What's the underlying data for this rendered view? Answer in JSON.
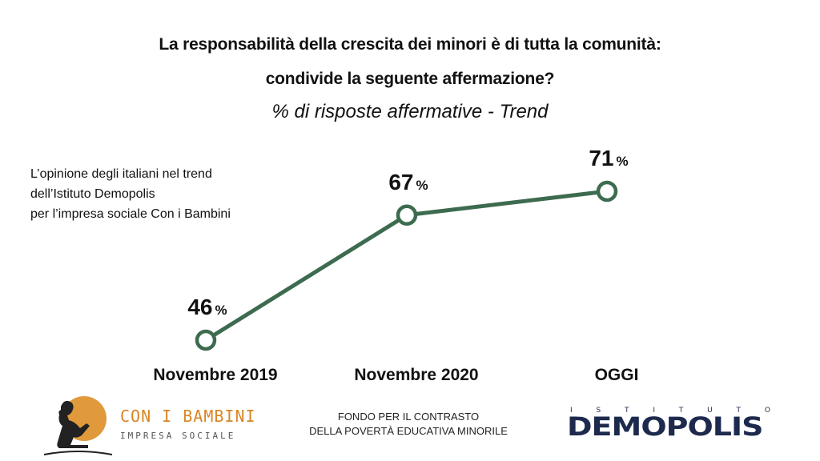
{
  "header": {
    "title_line1": "La responsabilità della crescita dei minori è di tutta la comunità:",
    "title_line2": "condivide la seguente affermazione?",
    "subtitle": "% di risposte affermative - Trend"
  },
  "note": {
    "lines": [
      "L’opinione degli italiani nel trend",
      "dell’Istituto Demopolis",
      "per l’impresa sociale Con i Bambini"
    ]
  },
  "chart_data": {
    "type": "line",
    "categories": [
      "Novembre 2019",
      "Novembre 2020",
      "OGGI"
    ],
    "series": [
      {
        "values": [
          46,
          67,
          71
        ]
      }
    ],
    "value_labels": [
      "46",
      "67",
      "71"
    ],
    "unit_label": "%",
    "line_color": "#3d6b4f",
    "grid": false
  },
  "footer": {
    "left_logo": {
      "name": "CON I BAMBINI",
      "sub": "IMPRESA SOCIALE",
      "accent": "#e09a3c"
    },
    "center_lines": [
      "FONDO PER IL CONTRASTO",
      "DELLA POVERTÀ EDUCATIVA MINORILE"
    ],
    "right_logo": {
      "top": "ISTITUTO",
      "name": "DEMOPOLIS",
      "color": "#1d2a4d"
    }
  }
}
